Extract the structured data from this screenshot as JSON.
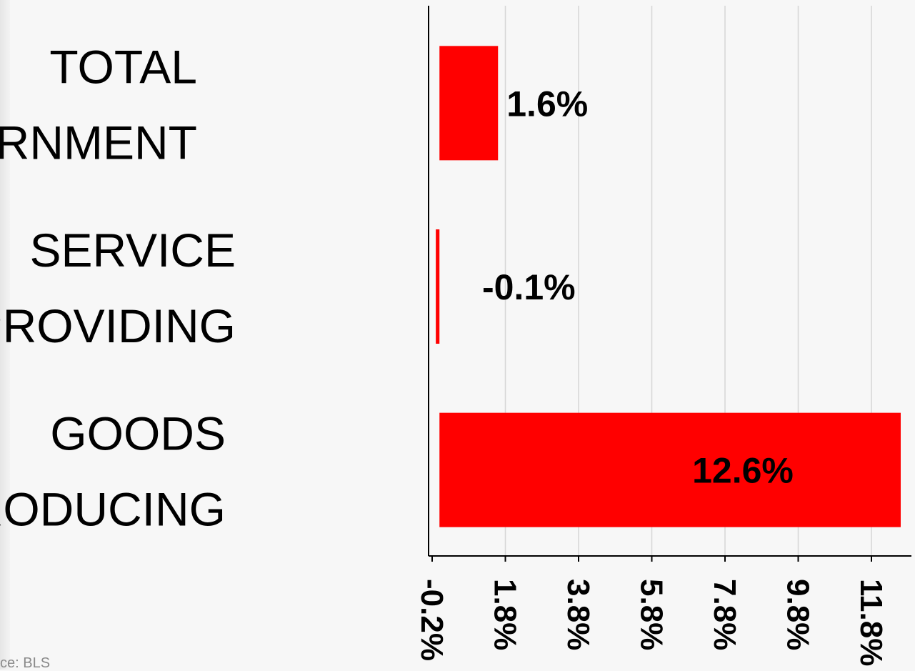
{
  "chart_data": {
    "type": "bar",
    "orientation": "horizontal",
    "categories": [
      "TOTAL GOVERNMENT",
      "SERVICE PROVIDING",
      "GOODS PRODUCING"
    ],
    "values": [
      1.6,
      -0.1,
      12.6
    ],
    "data_labels": [
      "1.6%",
      "-0.1%",
      "12.6%"
    ],
    "xlim": [
      -0.2,
      12.9
    ],
    "xticks": [
      -0.2,
      1.8,
      3.8,
      5.8,
      7.8,
      9.8,
      11.8
    ],
    "xtick_labels": [
      "-0.2%",
      "1.8%",
      "3.8%",
      "5.8%",
      "7.8%",
      "9.8%",
      "11.8%"
    ],
    "grid": true,
    "bar_color": "#ff0000",
    "title": "",
    "xlabel": "",
    "ylabel": ""
  },
  "footer": {
    "source": "ce: BLS"
  }
}
